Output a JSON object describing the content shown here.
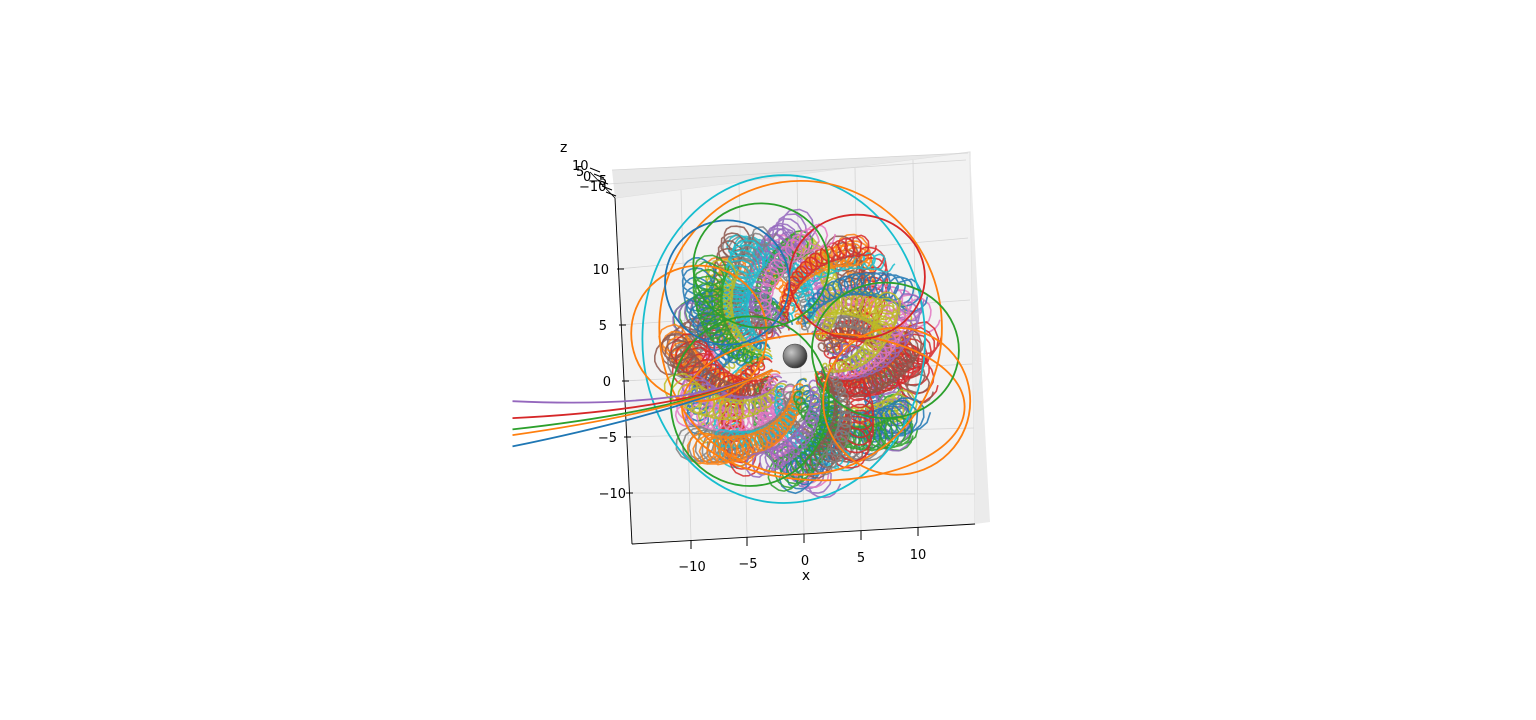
{
  "chart_data": {
    "type": "line3d",
    "projection": "3d",
    "xlabel": "x",
    "ylabel": "",
    "zlabel": "z",
    "x_ticks": [
      "−10",
      "−5",
      "0",
      "5",
      "10"
    ],
    "y_ticks": [
      "10",
      "5",
      "0",
      "−5",
      "−10"
    ],
    "z_ticks": [
      "10",
      "5",
      "0",
      "−5",
      "−10"
    ],
    "xlim": [
      -14,
      16
    ],
    "ylim": [
      -14,
      16
    ],
    "zlim": [
      -12,
      12
    ],
    "grid": true,
    "central_body": {
      "shape": "sphere",
      "center": [
        0,
        0,
        0
      ],
      "color": "#7a7a7a"
    },
    "series_colors": [
      "#1f77b4",
      "#ff7f0e",
      "#2ca02c",
      "#d62728",
      "#9467bd",
      "#8c564b",
      "#e377c2",
      "#7f7f7f",
      "#bcbd22",
      "#17becf"
    ],
    "trajectory_groups": 12,
    "outer_loops": [
      {
        "color": "#17becf",
        "center": [
          -1,
          1.5
        ],
        "radius": [
          12.5,
          14.5
        ]
      },
      {
        "color": "#ff7f0e",
        "center": [
          0.5,
          2.5
        ],
        "radius": [
          12.5,
          13.0
        ]
      },
      {
        "color": "#ff7f0e",
        "center": [
          2.5,
          -4.5
        ],
        "radius": [
          12.5,
          6.5
        ]
      },
      {
        "color": "#2ca02c",
        "center": [
          8,
          0.5
        ],
        "radius": [
          6.5,
          6.0
        ]
      },
      {
        "color": "#ff7f0e",
        "center": [
          -8.5,
          2
        ],
        "radius": [
          6.0,
          6.0
        ]
      },
      {
        "color": "#2ca02c",
        "center": [
          -4,
          -4
        ],
        "radius": [
          7.0,
          7.5
        ]
      },
      {
        "color": "#ff7f0e",
        "center": [
          9,
          -4
        ],
        "radius": [
          6.5,
          6.5
        ]
      },
      {
        "color": "#d62728",
        "center": [
          5.5,
          7
        ],
        "radius": [
          6.0,
          5.5
        ]
      },
      {
        "color": "#1f77b4",
        "center": [
          -6,
          6.5
        ],
        "radius": [
          5.5,
          5.5
        ]
      },
      {
        "color": "#2ca02c",
        "center": [
          -3,
          8
        ],
        "radius": [
          6.0,
          5.5
        ]
      }
    ],
    "escaping_streams": [
      {
        "color": "#9467bd",
        "end": [
          -25,
          -4
        ]
      },
      {
        "color": "#d62728",
        "end": [
          -25,
          -5.5
        ]
      },
      {
        "color": "#2ca02c",
        "end": [
          -25,
          -6.5
        ]
      },
      {
        "color": "#1f77b4",
        "end": [
          -25,
          -8
        ]
      },
      {
        "color": "#ff7f0e",
        "end": [
          -25,
          -7
        ]
      }
    ]
  }
}
